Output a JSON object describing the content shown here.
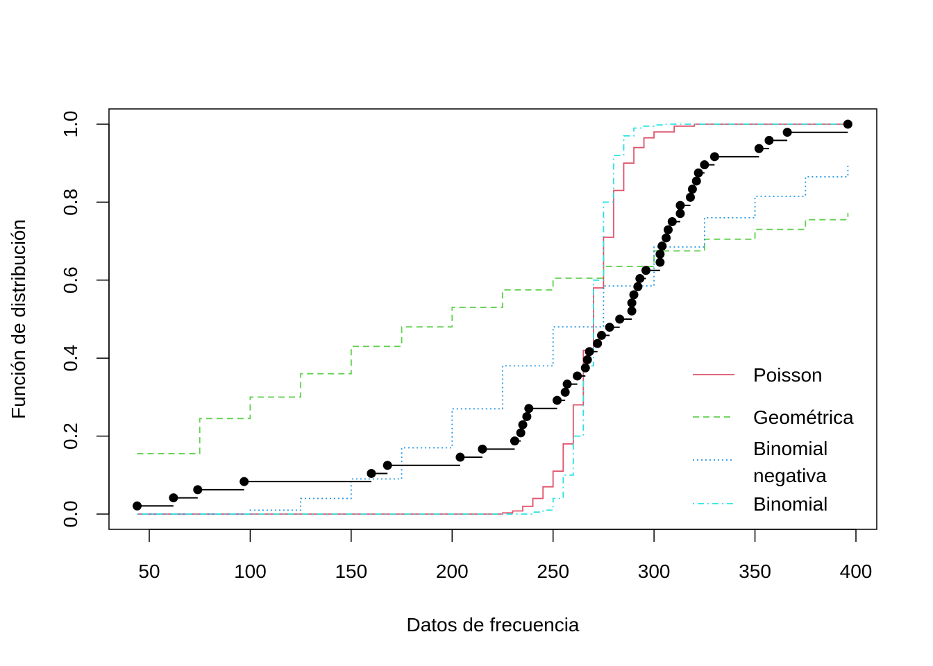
{
  "chart_data": {
    "type": "line",
    "title": "",
    "xlabel": "Datos de frecuencia",
    "ylabel": "Función de distribución",
    "xlim": [
      40,
      400
    ],
    "ylim": [
      0,
      1
    ],
    "x_ticks": [
      50,
      100,
      150,
      200,
      250,
      300,
      350,
      400
    ],
    "y_ticks": [
      0.0,
      0.2,
      0.4,
      0.6,
      0.8,
      1.0
    ],
    "x_tick_labels": [
      "50",
      "100",
      "150",
      "200",
      "250",
      "300",
      "350",
      "400"
    ],
    "y_tick_labels": [
      "0.0",
      "0.2",
      "0.4",
      "0.6",
      "0.8",
      "1.0"
    ],
    "grid": false,
    "legend_position": "bottom-right",
    "empirical": {
      "x": [
        44,
        62,
        74,
        97,
        160,
        168,
        204,
        215,
        231,
        234,
        235,
        237,
        238,
        252,
        256,
        257,
        262,
        266,
        267,
        268,
        272,
        274,
        278,
        283,
        289,
        289,
        290,
        292,
        293,
        296,
        303,
        303,
        304,
        306,
        307,
        309,
        313,
        313,
        318,
        319,
        321,
        322,
        325,
        330,
        352,
        357,
        366,
        396
      ],
      "y": [
        0.0208,
        0.0417,
        0.0625,
        0.0833,
        0.1042,
        0.125,
        0.1458,
        0.1667,
        0.1875,
        0.2083,
        0.2292,
        0.25,
        0.2708,
        0.2917,
        0.3125,
        0.3333,
        0.3542,
        0.375,
        0.3958,
        0.4167,
        0.4375,
        0.4583,
        0.4792,
        0.5,
        0.5208,
        0.5417,
        0.5625,
        0.5833,
        0.6042,
        0.625,
        0.6458,
        0.6667,
        0.6875,
        0.7083,
        0.7292,
        0.75,
        0.7708,
        0.7917,
        0.8125,
        0.8333,
        0.8542,
        0.875,
        0.8958,
        0.9167,
        0.9375,
        0.9583,
        0.9792,
        1.0
      ]
    },
    "series": [
      {
        "name": "Poisson",
        "color": "#DF536B",
        "dash": "solid",
        "x": [
          44,
          220,
          225,
          230,
          235,
          240,
          245,
          250,
          255,
          260,
          265,
          270,
          275,
          280,
          285,
          290,
          295,
          300,
          310,
          320,
          396
        ],
        "y": [
          0.0,
          0.0,
          0.003,
          0.008,
          0.02,
          0.04,
          0.07,
          0.11,
          0.18,
          0.28,
          0.42,
          0.58,
          0.71,
          0.83,
          0.9,
          0.94,
          0.965,
          0.98,
          0.995,
          1.0,
          1.0
        ]
      },
      {
        "name": "Geométrica",
        "color": "#61D04F",
        "dash": "dashed",
        "x": [
          44,
          75,
          100,
          125,
          150,
          175,
          200,
          225,
          250,
          275,
          300,
          325,
          350,
          375,
          396
        ],
        "y": [
          0.155,
          0.245,
          0.3,
          0.36,
          0.43,
          0.48,
          0.53,
          0.575,
          0.605,
          0.635,
          0.675,
          0.705,
          0.73,
          0.755,
          0.772
        ]
      },
      {
        "name": "Binomial\nnegativa",
        "color": "#2297E6",
        "dash": "dotted",
        "x": [
          44,
          75,
          100,
          125,
          150,
          175,
          200,
          225,
          250,
          275,
          300,
          325,
          350,
          375,
          396
        ],
        "y": [
          0.0,
          0.0,
          0.01,
          0.04,
          0.09,
          0.17,
          0.27,
          0.38,
          0.48,
          0.585,
          0.685,
          0.76,
          0.815,
          0.865,
          0.9
        ]
      },
      {
        "name": "Binomial",
        "color": "#28E2E5",
        "dash": "dotdash",
        "x": [
          44,
          235,
          240,
          245,
          250,
          255,
          260,
          265,
          270,
          275,
          280,
          285,
          290,
          295,
          300,
          305,
          396
        ],
        "y": [
          0.0,
          0.0,
          0.005,
          0.01,
          0.04,
          0.1,
          0.2,
          0.38,
          0.6,
          0.8,
          0.92,
          0.97,
          0.99,
          0.995,
          0.998,
          1.0,
          1.0
        ]
      }
    ],
    "legend": [
      {
        "label": "Poisson",
        "color": "#DF536B",
        "dash": "solid"
      },
      {
        "label": "Geométrica",
        "color": "#61D04F",
        "dash": "dashed"
      },
      {
        "label": "Binomial",
        "label2": "negativa",
        "color": "#2297E6",
        "dash": "dotted"
      },
      {
        "label": "Binomial",
        "color": "#28E2E5",
        "dash": "dotdash"
      }
    ]
  }
}
